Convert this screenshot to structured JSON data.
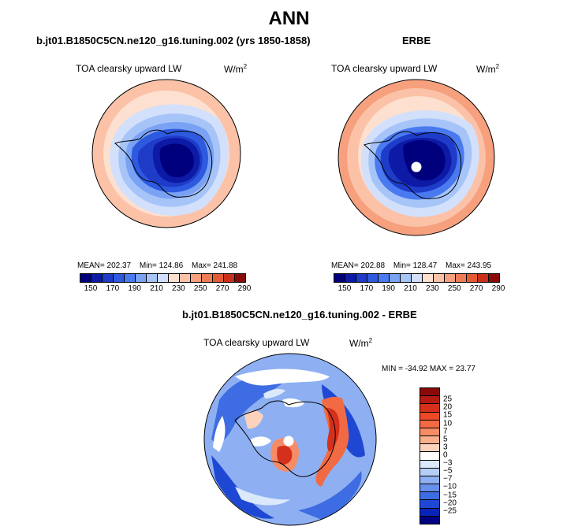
{
  "title": "ANN",
  "panels": {
    "model": {
      "case_title": "b.jt01.B1850C5CN.ne120_g16.tuning.002 (yrs 1850-1858)",
      "field": "TOA clearsky upward LW",
      "units": "W/m",
      "units_sup": "2",
      "mean_label": "MEAN= 202.37",
      "min_label": "Min= 124.86",
      "max_label": "Max= 241.88"
    },
    "obs": {
      "case_title": "ERBE",
      "field": "TOA clearsky upward LW",
      "units": "W/m",
      "units_sup": "2",
      "mean_label": "MEAN= 202.88",
      "min_label": "Min= 128.47",
      "max_label": "Max= 243.95"
    },
    "diff": {
      "case_title": "b.jt01.B1850C5CN.ne120_g16.tuning.002 - ERBE",
      "field": "TOA clearsky upward LW",
      "units": "W/m",
      "units_sup": "2",
      "minmax_label": "MIN = -34.92 MAX =  23.77"
    }
  },
  "abs_colorbar": {
    "colors": [
      "#00007d",
      "#0c1aa6",
      "#1e3cc8",
      "#2e5ae0",
      "#4a7af0",
      "#7aa2f4",
      "#a6c4f8",
      "#d2e0fb",
      "#fde0cf",
      "#fbc2a8",
      "#f6a07e",
      "#f07c56",
      "#e45a34",
      "#c8301c",
      "#8a0a0a"
    ],
    "tick_labels": [
      "150",
      "170",
      "190",
      "210",
      "230",
      "250",
      "270",
      "290"
    ]
  },
  "diff_colorbar": {
    "colors": [
      "#8a0a0a",
      "#b21a12",
      "#d4301c",
      "#ec4a26",
      "#f26a44",
      "#f68c66",
      "#f9ae8c",
      "#fcd2bc",
      "#ffffff",
      "#dce8fb",
      "#b6cdf7",
      "#8eb0f2",
      "#6690ea",
      "#3e6ce2",
      "#1e48d4",
      "#0a24b8",
      "#000080"
    ],
    "tick_labels": [
      "25",
      "20",
      "15",
      "10",
      "7",
      "5",
      "3",
      "0",
      "−3",
      "−5",
      "−7",
      "−10",
      "−15",
      "−20",
      "−25"
    ]
  },
  "map_colors": {
    "ocean_warm": "#fde2d2",
    "ocean_warm2": "#f6b392",
    "ice_blue": "#7aa2f4",
    "deep_blue": "#0c1aa6",
    "darkest": "#00007d",
    "coast": "#000000"
  }
}
